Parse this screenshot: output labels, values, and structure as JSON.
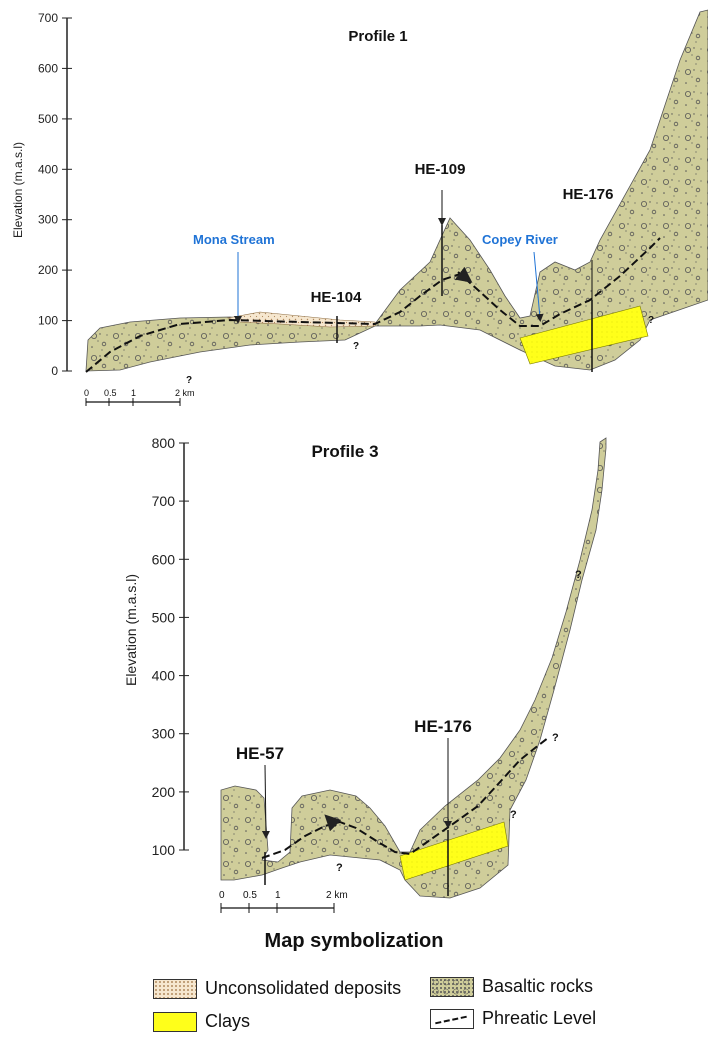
{
  "profile1": {
    "title": "Profile 1",
    "ylabel": "Elevation (m.a.s.l)",
    "yticks": [
      "0",
      "100",
      "200",
      "300",
      "400",
      "500",
      "600",
      "700"
    ],
    "scale": [
      "0",
      "0.5",
      "1",
      "2 km"
    ],
    "wells": [
      "HE-104",
      "HE-109",
      "HE-176"
    ],
    "streams": [
      "Mona Stream",
      "Copey River"
    ],
    "unknown_mark": "?"
  },
  "profile3": {
    "title": "Profile 3",
    "ylabel": "Elevation (m.a.s.l)",
    "yticks": [
      "100",
      "200",
      "300",
      "400",
      "500",
      "600",
      "700",
      "800"
    ],
    "scale": [
      "0",
      "0.5",
      "1",
      "2 km"
    ],
    "wells": [
      "HE-57",
      "HE-176"
    ],
    "unknown_mark": "?"
  },
  "legend": {
    "title": "Map symbolization",
    "items": {
      "unconsolidated": "Unconsolidated deposits",
      "basaltic": "Basaltic rocks",
      "clays": "Clays",
      "phreatic": "Phreatic Level"
    }
  },
  "colors": {
    "basalt": "#cfcd9a",
    "clay": "#ffff1a",
    "unconsolidated": "#f6e7cf",
    "stream_label": "#1f73d6"
  }
}
